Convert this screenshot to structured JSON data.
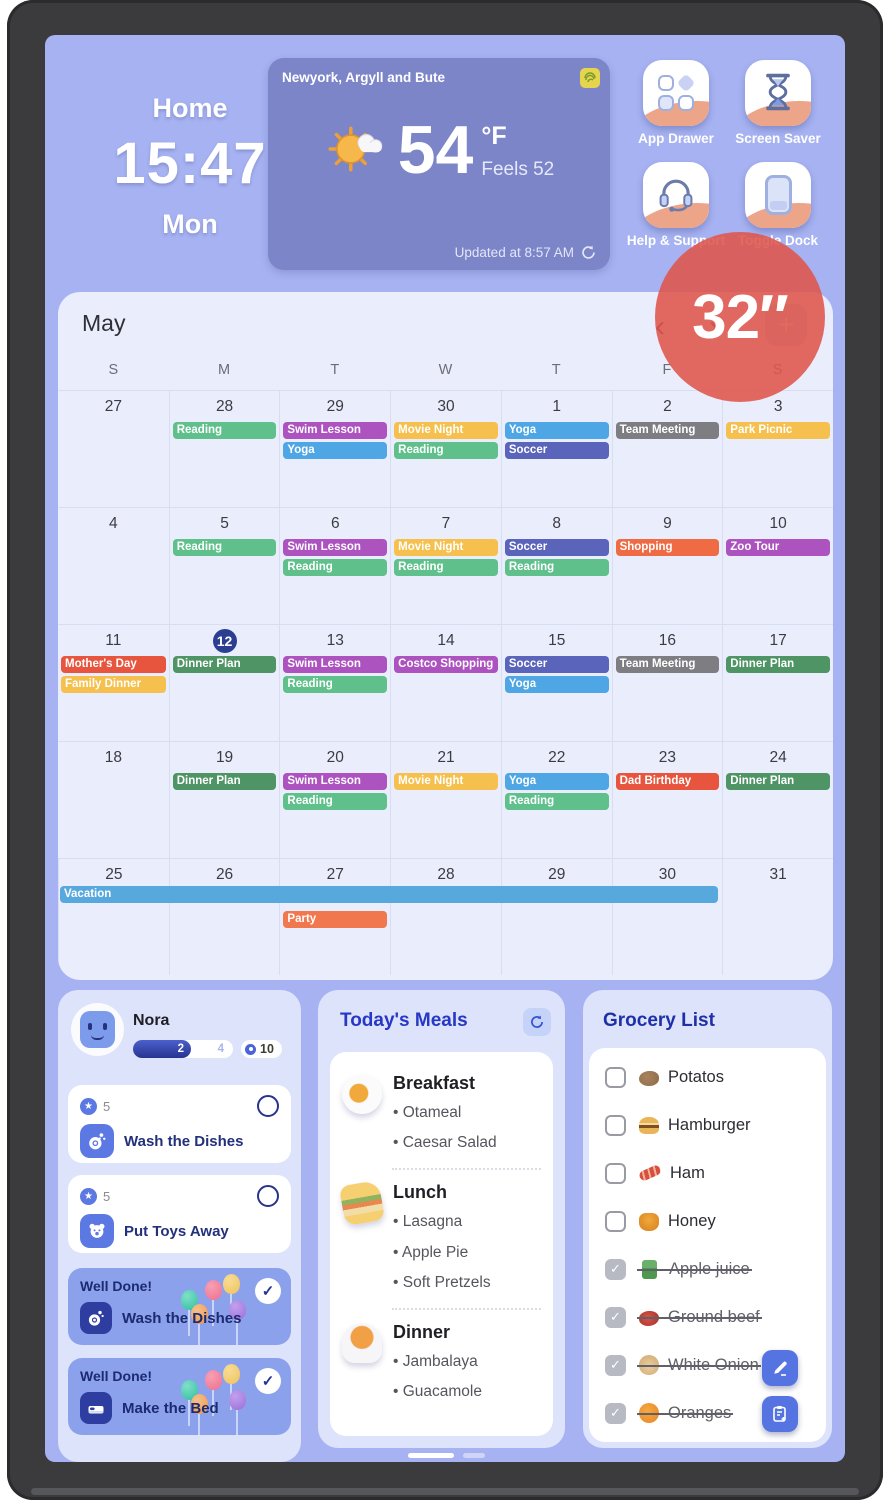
{
  "header": {
    "room_label": "Home",
    "time": "15:47",
    "day": "Mon",
    "weather": {
      "location": "Newyork, Argyll and Bute",
      "temp": "54",
      "unit": "°F",
      "feels": "Feels 52",
      "updated": "Updated at 8:57 AM"
    },
    "shortcuts": [
      {
        "label": "App Drawer",
        "icon": "app-drawer-icon"
      },
      {
        "label": "Screen Saver",
        "icon": "hourglass-icon"
      },
      {
        "label": "Help & Support",
        "icon": "headset-icon"
      },
      {
        "label": "Toggle Dock",
        "icon": "tablet-icon"
      }
    ]
  },
  "size_badge": "32″",
  "ui": {
    "check": "✓",
    "star": "★",
    "prev": "‹",
    "next": "›",
    "add": "+",
    "bullet": "•"
  },
  "colors": {
    "screen_bg": "#a6b2f1",
    "badge_red": "#df5448",
    "accent_blue": "#2737c6",
    "navy": "#27338f"
  },
  "calendar": {
    "month": "May",
    "weekdays": [
      "S",
      "M",
      "T",
      "W",
      "T",
      "F",
      "S"
    ],
    "palette": {
      "green": "#5fc08c",
      "darkgreen": "#4f9464",
      "purple": "#ac53c0",
      "blue": "#4ea6e4",
      "yellow": "#f5c04d",
      "indigo": "#5a64ba",
      "gray": "#7d7d82",
      "orange": "#ef6b44",
      "red": "#e7553e",
      "salmon": "#f1774f",
      "sky": "#57a8dd"
    },
    "weeks": [
      {
        "days": [
          {
            "date": "27",
            "events": []
          },
          {
            "date": "28",
            "events": [
              {
                "label": "Reading",
                "color": "green"
              }
            ]
          },
          {
            "date": "29",
            "events": [
              {
                "label": "Swim Lesson",
                "color": "purple"
              },
              {
                "label": "Yoga",
                "color": "blue"
              }
            ]
          },
          {
            "date": "30",
            "events": [
              {
                "label": "Movie Night",
                "color": "yellow"
              },
              {
                "label": "Reading",
                "color": "green"
              }
            ]
          },
          {
            "date": "1",
            "events": [
              {
                "label": "Yoga",
                "color": "blue"
              },
              {
                "label": "Soccer",
                "color": "indigo"
              }
            ]
          },
          {
            "date": "2",
            "events": [
              {
                "label": "Team Meeting",
                "color": "gray"
              }
            ]
          },
          {
            "date": "3",
            "events": [
              {
                "label": "Park Picnic",
                "color": "yellow"
              }
            ]
          }
        ]
      },
      {
        "days": [
          {
            "date": "4",
            "events": []
          },
          {
            "date": "5",
            "events": [
              {
                "label": "Reading",
                "color": "green"
              }
            ]
          },
          {
            "date": "6",
            "events": [
              {
                "label": "Swim Lesson",
                "color": "purple"
              },
              {
                "label": "Reading",
                "color": "green"
              }
            ]
          },
          {
            "date": "7",
            "events": [
              {
                "label": "Movie Night",
                "color": "yellow"
              },
              {
                "label": "Reading",
                "color": "green"
              }
            ]
          },
          {
            "date": "8",
            "events": [
              {
                "label": "Soccer",
                "color": "indigo"
              },
              {
                "label": "Reading",
                "color": "green"
              }
            ]
          },
          {
            "date": "9",
            "events": [
              {
                "label": "Shopping",
                "color": "orange"
              }
            ]
          },
          {
            "date": "10",
            "events": [
              {
                "label": "Zoo Tour",
                "emoji": "🐼",
                "color": "purple"
              }
            ]
          }
        ]
      },
      {
        "days": [
          {
            "date": "11",
            "events": [
              {
                "label": "Mother's Day",
                "emoji": "💐",
                "color": "red"
              },
              {
                "label": "Family Dinner",
                "color": "yellow"
              }
            ]
          },
          {
            "date": "12",
            "today": true,
            "events": [
              {
                "label": "Dinner Plan",
                "color": "darkgreen"
              }
            ]
          },
          {
            "date": "13",
            "events": [
              {
                "label": "Swim Lesson",
                "color": "purple"
              },
              {
                "label": "Reading",
                "color": "green"
              }
            ]
          },
          {
            "date": "14",
            "events": [
              {
                "label": "Costco Shopping",
                "color": "purple"
              }
            ]
          },
          {
            "date": "15",
            "events": [
              {
                "label": "Soccer",
                "color": "indigo"
              },
              {
                "label": "Yoga",
                "color": "blue"
              }
            ]
          },
          {
            "date": "16",
            "events": [
              {
                "label": "Team Meeting",
                "color": "gray"
              }
            ]
          },
          {
            "date": "17",
            "events": [
              {
                "label": "Dinner Plan",
                "color": "darkgreen"
              }
            ]
          }
        ]
      },
      {
        "days": [
          {
            "date": "18",
            "events": []
          },
          {
            "date": "19",
            "events": [
              {
                "label": "Dinner Plan",
                "color": "darkgreen"
              }
            ]
          },
          {
            "date": "20",
            "events": [
              {
                "label": "Swim Lesson",
                "color": "purple"
              },
              {
                "label": "Reading",
                "color": "green"
              }
            ]
          },
          {
            "date": "21",
            "events": [
              {
                "label": "Movie Night",
                "color": "yellow"
              }
            ]
          },
          {
            "date": "22",
            "events": [
              {
                "label": "Yoga",
                "color": "blue"
              },
              {
                "label": "Reading",
                "color": "green"
              }
            ]
          },
          {
            "date": "23",
            "events": [
              {
                "label": "Dad Birthday",
                "emoji": "🎂",
                "color": "red"
              }
            ]
          },
          {
            "date": "24",
            "events": [
              {
                "label": "Dinner Plan",
                "color": "darkgreen"
              }
            ]
          }
        ]
      },
      {
        "span_offset": true,
        "days": [
          {
            "date": "25",
            "events": []
          },
          {
            "date": "26",
            "events": []
          },
          {
            "date": "27",
            "events": [
              {
                "label": "Party",
                "color": "salmon"
              }
            ]
          },
          {
            "date": "28",
            "events": []
          },
          {
            "date": "29",
            "events": []
          },
          {
            "date": "30",
            "events": []
          },
          {
            "date": "31",
            "events": []
          }
        ]
      }
    ],
    "span_event": {
      "label": "Vacation",
      "color": "sky",
      "week_index": 4,
      "start_col": 0,
      "col_span": 6
    }
  },
  "chores": {
    "name": "Nora",
    "progress": {
      "done": "2",
      "total": "4"
    },
    "points": "10",
    "tasks": [
      {
        "points": "5",
        "label": "Wash the Dishes",
        "icon": "dishes-icon"
      },
      {
        "points": "5",
        "label": "Put Toys Away",
        "icon": "teddy-bear-icon"
      }
    ],
    "completed": [
      {
        "title": "Well Done!",
        "label": "Wash the Dishes",
        "icon": "dishes-icon"
      },
      {
        "title": "Well Done!",
        "label": "Make the Bed",
        "icon": "bed-icon"
      }
    ]
  },
  "meals": {
    "title": "Today's Meals",
    "sections": [
      {
        "name": "Breakfast",
        "icon": "egg-icon",
        "items": [
          "Otameal",
          "Caesar Salad"
        ]
      },
      {
        "name": "Lunch",
        "icon": "sandwich-icon",
        "items": [
          "Lasagna",
          "Apple Pie",
          "Soft Pretzels"
        ]
      },
      {
        "name": "Dinner",
        "icon": "roast-icon",
        "items": [
          "Jambalaya",
          "Guacamole"
        ]
      }
    ]
  },
  "grocery": {
    "title": "Grocery List",
    "items": [
      {
        "label": "Potatos",
        "emoji": "🥔",
        "icon": "potato-icon",
        "checked": false
      },
      {
        "label": "Hamburger",
        "emoji": "🍔",
        "icon": "hamburger-icon",
        "checked": false
      },
      {
        "label": "Ham",
        "emoji": "🥓",
        "icon": "bacon-icon",
        "checked": false
      },
      {
        "label": "Honey",
        "emoji": "🍯",
        "icon": "honey-icon",
        "checked": false
      },
      {
        "label": "Apple juice",
        "emoji": "🧃",
        "icon": "juice-icon",
        "checked": true
      },
      {
        "label": "Ground beef",
        "emoji": "🥩",
        "icon": "beef-icon",
        "checked": true
      },
      {
        "label": "White Onion",
        "emoji": "🧅",
        "icon": "onion-icon",
        "checked": true
      },
      {
        "label": "Oranges",
        "emoji": "🍊",
        "icon": "orange-icon",
        "checked": true
      }
    ]
  }
}
